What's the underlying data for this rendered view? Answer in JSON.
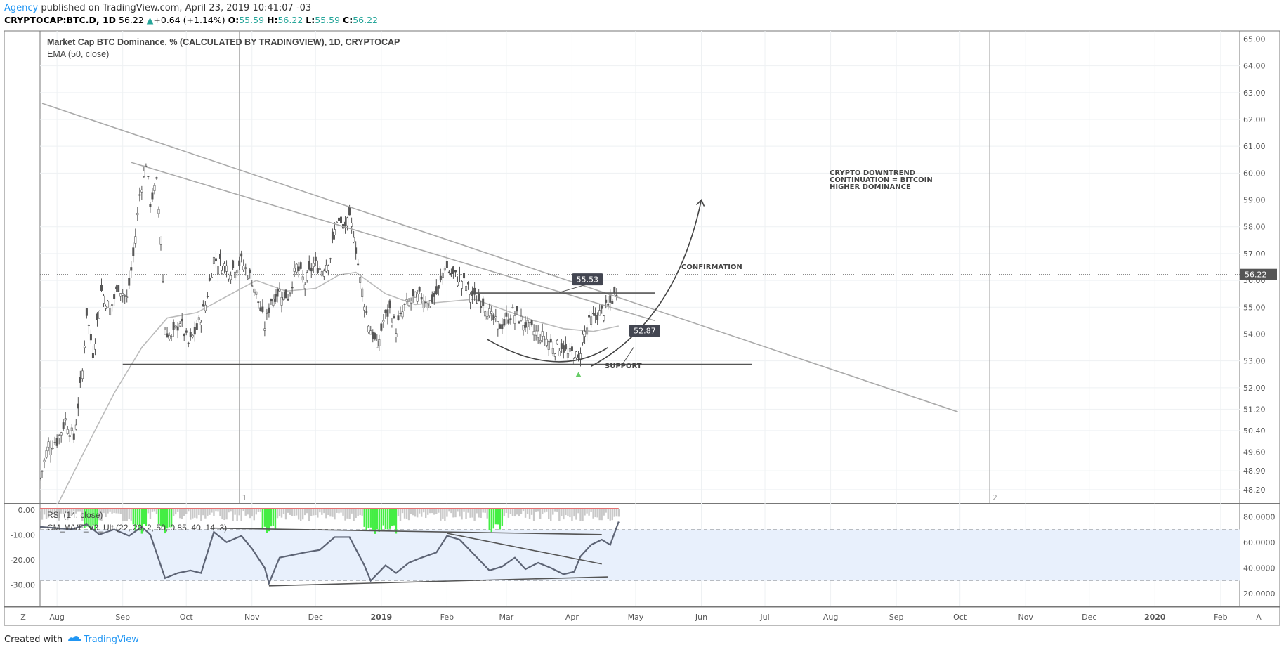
{
  "header": {
    "author": "Agency",
    "published_text": "published on TradingView.com, April 23, 2019 10:41:07 -03",
    "symbol": "CRYPTOCAP:BTC.D, 1D",
    "last": "56.22",
    "change": "+0.64 (+1.14%)",
    "o_label": "O:",
    "o_value": "55.59",
    "h_label": "H:",
    "h_value": "56.22",
    "l_label": "L:",
    "l_value": "55.59",
    "c_label": "C:",
    "c_value": "56.22"
  },
  "legend": {
    "main": "Market Cap BTC Dominance, % (CALCULATED BY TRADINGVIEW), 1D, CRYPTOCAP",
    "ema": "EMA (50, close)",
    "rsi": "RSI (14, close)",
    "wvf": "CM_WVF_V3_Ult (22, 20, 2, 50, 0.85, 40, 14, 3)"
  },
  "footer": {
    "created": "Created with",
    "brand": "TradingView"
  },
  "scale_buttons": {
    "left": "Z",
    "right": "A"
  },
  "colors": {
    "price_line": "#555555",
    "trend_line": "#aaaaaa",
    "ema": "#bbbbbb",
    "rsi": "#5d6475",
    "wvf_green": "#44ee44",
    "rsi_band": "#e8f0fc",
    "label_bg": "#434651",
    "last_price_bg": "#555555"
  },
  "chart_data": [
    {
      "type": "candlestick",
      "title": "Market Cap BTC Dominance, % (CALCULATED BY TRADINGVIEW), 1D, CRYPTOCAP",
      "ylim": [
        47.7,
        65.3
      ],
      "y_ticks": [
        "65.00",
        "64.00",
        "63.00",
        "62.00",
        "61.00",
        "60.00",
        "59.00",
        "58.00",
        "57.00",
        "56.00",
        "55.00",
        "54.00",
        "53.00",
        "52.00",
        "51.20",
        "50.40",
        "49.60",
        "48.90",
        "48.20"
      ],
      "x_ticks": [
        "Aug",
        "Sep",
        "Oct",
        "Nov",
        "Dec",
        "2019",
        "Feb",
        "Mar",
        "Apr",
        "May",
        "Jun",
        "Jul",
        "Aug",
        "Sep",
        "Oct",
        "Nov",
        "Dec",
        "2020",
        "Feb"
      ],
      "x_range": [
        "2018-07-24",
        "2020-02-10"
      ],
      "last_price": "56.22",
      "close_series": {
        "name": "BTC.D close",
        "points": [
          [
            "2018-07-24",
            48.6
          ],
          [
            "2018-07-28",
            49.9
          ],
          [
            "2018-08-01",
            50.0
          ],
          [
            "2018-08-05",
            50.8
          ],
          [
            "2018-08-09",
            50.1
          ],
          [
            "2018-08-13",
            52.6
          ],
          [
            "2018-08-15",
            54.8
          ],
          [
            "2018-08-18",
            53.3
          ],
          [
            "2018-08-22",
            55.6
          ],
          [
            "2018-08-26",
            54.9
          ],
          [
            "2018-08-30",
            55.8
          ],
          [
            "2018-09-03",
            55.3
          ],
          [
            "2018-09-06",
            56.9
          ],
          [
            "2018-09-09",
            59.2
          ],
          [
            "2018-09-12",
            60.4
          ],
          [
            "2018-09-14",
            58.9
          ],
          [
            "2018-09-17",
            59.6
          ],
          [
            "2018-09-19",
            57.7
          ],
          [
            "2018-09-21",
            54.2
          ],
          [
            "2018-09-24",
            53.8
          ],
          [
            "2018-09-28",
            54.5
          ],
          [
            "2018-10-02",
            53.6
          ],
          [
            "2018-10-06",
            54.2
          ],
          [
            "2018-10-10",
            55.1
          ],
          [
            "2018-10-14",
            56.8
          ],
          [
            "2018-10-18",
            56.6
          ],
          [
            "2018-10-22",
            56.4
          ],
          [
            "2018-10-27",
            56.7
          ],
          [
            "2018-11-01",
            56.0
          ],
          [
            "2018-11-04",
            55.2
          ],
          [
            "2018-11-07",
            54.3
          ],
          [
            "2018-11-10",
            55.3
          ],
          [
            "2018-11-14",
            55.6
          ],
          [
            "2018-11-18",
            55.4
          ],
          [
            "2018-11-22",
            56.5
          ],
          [
            "2018-11-26",
            55.9
          ],
          [
            "2018-11-30",
            56.6
          ],
          [
            "2018-12-04",
            56.4
          ],
          [
            "2018-12-08",
            56.9
          ],
          [
            "2018-12-11",
            58.3
          ],
          [
            "2018-12-14",
            57.9
          ],
          [
            "2018-12-17",
            58.2
          ],
          [
            "2018-12-19",
            57.8
          ],
          [
            "2018-12-22",
            56.0
          ],
          [
            "2018-12-26",
            54.4
          ],
          [
            "2018-12-30",
            53.5
          ],
          [
            "2019-01-02",
            54.5
          ],
          [
            "2019-01-05",
            54.9
          ],
          [
            "2019-01-08",
            54.2
          ],
          [
            "2019-01-12",
            55.0
          ],
          [
            "2019-01-16",
            55.3
          ],
          [
            "2019-01-20",
            55.4
          ],
          [
            "2019-01-24",
            55.2
          ],
          [
            "2019-01-28",
            55.6
          ],
          [
            "2019-01-31",
            56.6
          ],
          [
            "2019-02-03",
            56.2
          ],
          [
            "2019-02-07",
            56.1
          ],
          [
            "2019-02-10",
            55.8
          ],
          [
            "2019-02-14",
            55.3
          ],
          [
            "2019-02-18",
            55.2
          ],
          [
            "2019-02-22",
            54.6
          ],
          [
            "2019-02-25",
            54.3
          ],
          [
            "2019-02-28",
            54.4
          ],
          [
            "2019-03-04",
            54.8
          ],
          [
            "2019-03-08",
            54.5
          ],
          [
            "2019-03-12",
            54.2
          ],
          [
            "2019-03-16",
            54.0
          ],
          [
            "2019-03-20",
            53.8
          ],
          [
            "2019-03-24",
            53.5
          ],
          [
            "2019-03-27",
            53.6
          ],
          [
            "2019-03-30",
            53.2
          ],
          [
            "2019-04-02",
            53.3
          ],
          [
            "2019-04-04",
            53.0
          ],
          [
            "2019-04-06",
            53.9
          ],
          [
            "2019-04-09",
            54.4
          ],
          [
            "2019-04-12",
            54.7
          ],
          [
            "2019-04-15",
            54.8
          ],
          [
            "2019-04-18",
            55.0
          ],
          [
            "2019-04-20",
            55.3
          ],
          [
            "2019-04-22",
            55.6
          ],
          [
            "2019-04-23",
            56.22
          ]
        ]
      },
      "ema_series": {
        "name": "EMA (50, close)",
        "points": [
          [
            "2018-08-01",
            47.6
          ],
          [
            "2018-08-15",
            49.8
          ],
          [
            "2018-08-28",
            51.8
          ],
          [
            "2018-09-10",
            53.5
          ],
          [
            "2018-09-22",
            54.6
          ],
          [
            "2018-10-06",
            54.8
          ],
          [
            "2018-10-20",
            55.4
          ],
          [
            "2018-11-03",
            56.0
          ],
          [
            "2018-11-17",
            55.6
          ],
          [
            "2018-12-01",
            55.7
          ],
          [
            "2018-12-12",
            56.2
          ],
          [
            "2018-12-20",
            56.3
          ],
          [
            "2019-01-03",
            55.5
          ],
          [
            "2019-01-17",
            55.1
          ],
          [
            "2019-01-31",
            55.2
          ],
          [
            "2019-02-14",
            55.3
          ],
          [
            "2019-02-28",
            54.9
          ],
          [
            "2019-03-14",
            54.5
          ],
          [
            "2019-03-28",
            54.2
          ],
          [
            "2019-04-11",
            54.1
          ],
          [
            "2019-04-23",
            54.3
          ]
        ]
      },
      "drawings": {
        "long_trendline": [
          [
            "2018-07-25",
            62.6
          ],
          [
            "2019-09-30",
            51.1
          ]
        ],
        "short_trendline": [
          [
            "2018-09-05",
            60.4
          ],
          [
            "2019-05-10",
            54.5
          ]
        ],
        "support_line": [
          [
            "2018-09-01",
            52.87
          ],
          [
            "2019-06-25",
            52.87
          ]
        ],
        "resistance_line": [
          [
            "2019-02-13",
            55.53
          ],
          [
            "2019-05-10",
            55.53
          ]
        ],
        "label_resistance": "55.53",
        "label_support": "52.87",
        "texts": [
          "CRYPTO DOWNTREND",
          "CONTINUATION = BITCOIN",
          "HIGHER DOMINANCE",
          "CONFIRMATION",
          "SUPPORT"
        ],
        "vertical_markers": [
          "1",
          "2"
        ]
      }
    },
    {
      "type": "line",
      "title": "RSI (14, close)",
      "right_ticks": [
        "80.0000",
        "60.0000",
        "40.0000",
        "20.0000"
      ],
      "left_ticks": [
        "0.00",
        "-10.00",
        "-20.00",
        "-30.00"
      ],
      "bands": [
        30,
        70
      ],
      "rsi_points": [
        [
          "2018-07-24",
          72
        ],
        [
          "2018-08-01",
          71
        ],
        [
          "2018-08-08",
          70
        ],
        [
          "2018-08-15",
          74
        ],
        [
          "2018-08-21",
          66
        ],
        [
          "2018-08-28",
          70
        ],
        [
          "2018-09-04",
          65
        ],
        [
          "2018-09-10",
          72
        ],
        [
          "2018-09-14",
          66
        ],
        [
          "2018-09-21",
          32
        ],
        [
          "2018-09-27",
          36
        ],
        [
          "2018-10-03",
          38
        ],
        [
          "2018-10-08",
          36
        ],
        [
          "2018-10-14",
          68
        ],
        [
          "2018-10-20",
          60
        ],
        [
          "2018-10-27",
          65
        ],
        [
          "2018-11-01",
          55
        ],
        [
          "2018-11-07",
          40
        ],
        [
          "2018-11-09",
          28
        ],
        [
          "2018-11-14",
          48
        ],
        [
          "2018-11-20",
          50
        ],
        [
          "2018-11-26",
          52
        ],
        [
          "2018-12-03",
          54
        ],
        [
          "2018-12-10",
          64
        ],
        [
          "2018-12-17",
          64
        ],
        [
          "2018-12-24",
          42
        ],
        [
          "2018-12-27",
          30
        ],
        [
          "2019-01-03",
          42
        ],
        [
          "2019-01-08",
          36
        ],
        [
          "2019-01-14",
          44
        ],
        [
          "2019-01-20",
          48
        ],
        [
          "2019-01-27",
          52
        ],
        [
          "2019-02-01",
          65
        ],
        [
          "2019-02-07",
          62
        ],
        [
          "2019-02-14",
          50
        ],
        [
          "2019-02-21",
          38
        ],
        [
          "2019-02-27",
          41
        ],
        [
          "2019-03-05",
          48
        ],
        [
          "2019-03-10",
          39
        ],
        [
          "2019-03-16",
          44
        ],
        [
          "2019-03-22",
          40
        ],
        [
          "2019-03-28",
          35
        ],
        [
          "2019-04-02",
          37
        ],
        [
          "2019-04-05",
          49
        ],
        [
          "2019-04-10",
          58
        ],
        [
          "2019-04-15",
          62
        ],
        [
          "2019-04-19",
          58
        ],
        [
          "2019-04-23",
          76
        ]
      ],
      "wvf_spike_dates": [
        "2018-08-17",
        "2018-09-09",
        "2018-09-21",
        "2018-11-09",
        "2018-12-27",
        "2019-01-02",
        "2019-01-05",
        "2019-02-24"
      ]
    }
  ]
}
